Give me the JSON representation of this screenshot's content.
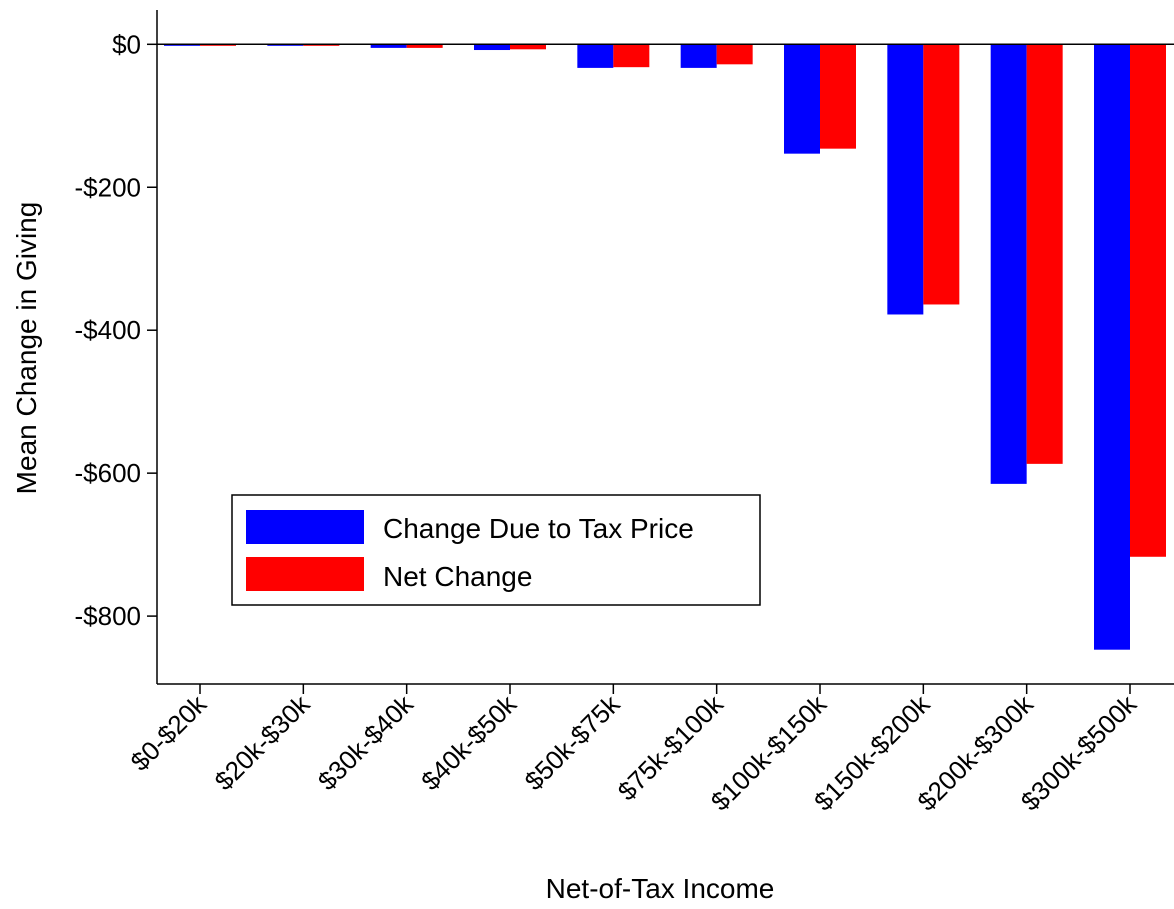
{
  "chart_data": {
    "type": "bar",
    "title": "",
    "xlabel": "Net-of-Tax Income",
    "ylabel": "Mean Change in Giving",
    "categories": [
      "$0-$20k",
      "$20k-$30k",
      "$30k-$40k",
      "$40k-$50k",
      "$50k-$75k",
      "$75k-$100k",
      "$100k-$150k",
      "$150k-$200k",
      "$200k-$300k",
      "$300k-$500k"
    ],
    "series": [
      {
        "name": "Change Due to Tax Price",
        "color": "#0000ff",
        "values": [
          -1,
          -1,
          -5,
          -8,
          -33,
          -33,
          -153,
          -378,
          -615,
          -847
        ]
      },
      {
        "name": "Net Change",
        "color": "#ff0000",
        "values": [
          -1,
          -1,
          -5,
          -7,
          -32,
          -28,
          -146,
          -364,
          -587,
          -717
        ]
      }
    ],
    "ylim": [
      -895,
      48
    ],
    "yticks": [
      0,
      -200,
      -400,
      -600,
      -800
    ],
    "ytick_labels": [
      "$0",
      "-$200",
      "-$400",
      "-$600",
      "-$800"
    ],
    "zero_line": true,
    "grid": false,
    "legend": {
      "position": "bottom-left"
    }
  }
}
